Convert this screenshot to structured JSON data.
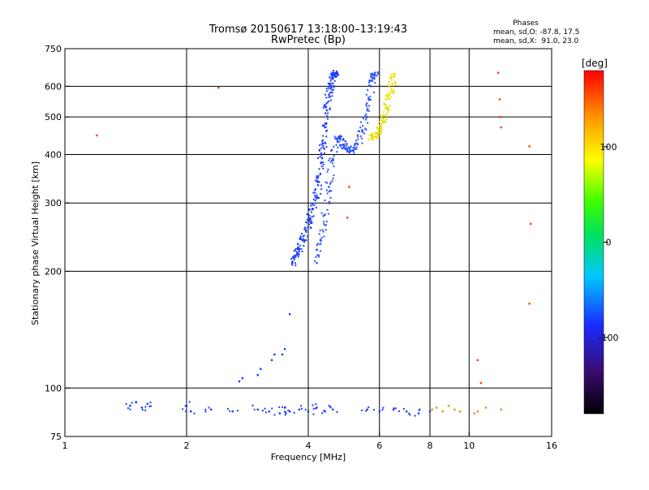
{
  "chart_data": {
    "type": "scatter",
    "title": "Tromsø 20150617 13:18:00–13:19:43",
    "subtitle": "RwPretec (Bp)",
    "phase_info": {
      "heading": "Phases",
      "line_o": "mean, sd,O: -87.8, 17.5",
      "line_x": "mean, sd,X:  91.0, 23.0"
    },
    "xlabel": "Frequency [MHz]",
    "ylabel": "Stationary phase Virtual Height [km]",
    "x_scale": "log",
    "y_scale": "log",
    "xlim": [
      1,
      16
    ],
    "ylim": [
      75,
      750
    ],
    "grid": true,
    "x_ticks": [
      1,
      2,
      4,
      6,
      8,
      10,
      16
    ],
    "x_tick_labels": [
      "1",
      "2",
      "4",
      "6",
      "8",
      "10",
      "16"
    ],
    "x_gridlines": [
      2,
      4,
      6,
      8,
      10
    ],
    "y_ticks": [
      75,
      100,
      200,
      300,
      400,
      500,
      600,
      750
    ],
    "y_tick_labels": [
      "75",
      "100",
      "200",
      "300",
      "400",
      "500",
      "600",
      "750"
    ],
    "y_gridlines": [
      100,
      200,
      300,
      400,
      500,
      600
    ],
    "colorbar": {
      "label": "[deg]",
      "range": [
        -180,
        180
      ],
      "ticks": [
        100,
        0,
        -100
      ],
      "tick_labels": [
        "100",
        "0",
        "-100"
      ]
    },
    "series": [
      {
        "role": "O-mode F trace (ordinary, blue)",
        "phase_deg": -95,
        "color": "#1a3cff",
        "x": [
          3.65,
          3.72,
          3.8,
          3.88,
          3.95,
          4.03,
          4.1,
          4.18,
          4.25,
          4.3,
          4.35,
          4.4,
          4.45,
          4.5,
          4.55,
          4.6,
          4.65,
          4.68
        ],
        "y": [
          210,
          218,
          228,
          240,
          255,
          270,
          290,
          310,
          340,
          380,
          420,
          470,
          520,
          570,
          600,
          630,
          645,
          650
        ]
      },
      {
        "role": "X-mode F trace (extraordinary, blue)",
        "phase_deg": -90,
        "color": "#2a50ff",
        "x": [
          4.2,
          4.3,
          4.4,
          4.5,
          4.6,
          4.7,
          4.8,
          4.9,
          5.0,
          5.15,
          5.3,
          5.45,
          5.6,
          5.72,
          5.8,
          5.85
        ],
        "y": [
          210,
          240,
          280,
          330,
          390,
          440,
          440,
          420,
          410,
          410,
          425,
          460,
          520,
          600,
          640,
          650
        ]
      },
      {
        "role": "X-mode upper segment (yellow)",
        "phase_deg": 95,
        "color": "#e8e000",
        "x": [
          5.75,
          5.85,
          5.95,
          6.05,
          6.15,
          6.25,
          6.35,
          6.45,
          6.55
        ],
        "y": [
          440,
          445,
          455,
          470,
          495,
          530,
          570,
          610,
          645
        ]
      },
      {
        "role": "E-layer echoes near 85–90 km (mixed phases)",
        "phase_deg": -90,
        "color": "#1a3cff",
        "x": [
          1.45,
          1.5,
          1.55,
          1.6,
          2.0,
          2.05,
          2.3,
          2.6,
          3.0,
          3.2,
          3.4,
          3.5,
          3.6,
          3.8,
          4.0,
          4.2,
          4.4,
          4.6,
          5.6,
          6.0,
          6.5,
          7.0,
          7.5,
          8.0
        ],
        "y": [
          90,
          92,
          89,
          91,
          90,
          87,
          88,
          87,
          88,
          87,
          86,
          89,
          87,
          88,
          87,
          89,
          87,
          88,
          88,
          87,
          88,
          87,
          86,
          87
        ]
      },
      {
        "role": "E-layer echoes with positive phase (yellow/orange/red)",
        "phase_deg": 120,
        "color": "#e89000",
        "x": [
          8.1,
          8.3,
          8.6,
          8.9,
          9.2,
          9.5,
          10.3,
          10.5,
          11.0,
          12.0
        ],
        "y": [
          88,
          89,
          87,
          90,
          88,
          87,
          86,
          87,
          89,
          88
        ]
      },
      {
        "role": "Sporadic/low echoes rising 2.6–3.7 MHz (blue)",
        "phase_deg": -95,
        "color": "#1a3cff",
        "x": [
          2.7,
          2.75,
          3.0,
          3.05,
          3.25,
          3.3,
          3.45,
          3.5,
          3.6
        ],
        "y": [
          104,
          106,
          108,
          112,
          118,
          122,
          122,
          126,
          155
        ]
      },
      {
        "role": "Isolated points (various phases)",
        "phase_deg": 140,
        "color": "#ff3a00",
        "x": [
          1.2,
          2.4,
          5.0,
          5.05,
          10.5,
          10.7,
          11.8,
          11.9,
          11.95,
          12.0,
          14.1,
          14.2,
          14.1
        ],
        "y": [
          448,
          595,
          275,
          330,
          118,
          103,
          650,
          555,
          500,
          470,
          420,
          265,
          165
        ]
      }
    ]
  }
}
